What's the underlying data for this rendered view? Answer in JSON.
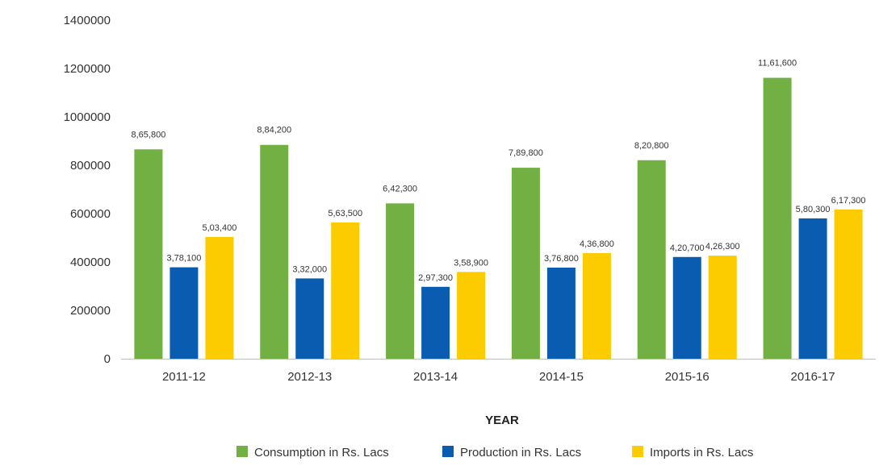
{
  "chart_data": {
    "type": "bar",
    "xlabel": "YEAR",
    "ylabel": "",
    "ylim": [
      0,
      1400000
    ],
    "yticks": [
      0,
      200000,
      400000,
      600000,
      800000,
      1000000,
      1200000,
      1400000
    ],
    "ytick_labels": [
      "0",
      "200000",
      "400000",
      "600000",
      "800000",
      "1000000",
      "1200000",
      "1400000"
    ],
    "grid": false,
    "legend_position": "bottom",
    "categories": [
      "2011-12",
      "2012-13",
      "2013-14",
      "2014-15",
      "2015-16",
      "2016-17"
    ],
    "series": [
      {
        "name": "Consumption in Rs. Lacs",
        "color": "#72b043",
        "values": [
          865800,
          884200,
          642300,
          789800,
          820800,
          1161600
        ],
        "labels": [
          "8,65,800",
          "8,84,200",
          "6,42,300",
          "7,89,800",
          "8,20,800",
          "11,61,600"
        ]
      },
      {
        "name": "Production in Rs. Lacs",
        "color": "#0a5cb0",
        "values": [
          378100,
          332000,
          297300,
          376800,
          420700,
          580300
        ],
        "labels": [
          "3,78,100",
          "3,32,000",
          "2,97,300",
          "3,76,800",
          "4,20,700",
          "5,80,300"
        ]
      },
      {
        "name": "Imports in Rs. Lacs",
        "color": "#fccb00",
        "values": [
          503400,
          563500,
          358900,
          436800,
          426300,
          617300
        ],
        "labels": [
          "5,03,400",
          "5,63,500",
          "3,58,900",
          "4,36,800",
          "4,26,300",
          "6,17,300"
        ]
      }
    ]
  }
}
